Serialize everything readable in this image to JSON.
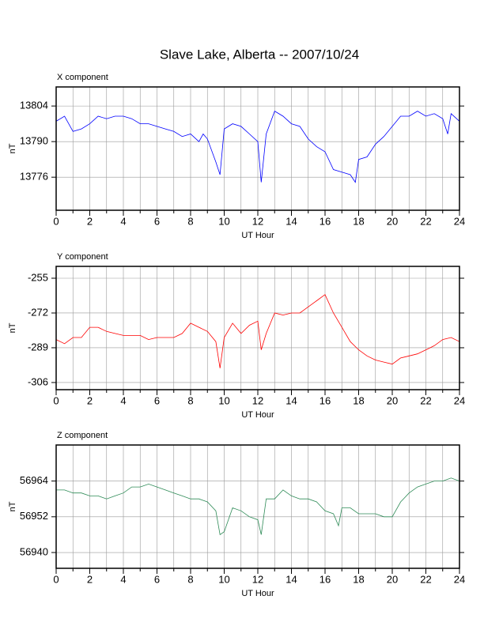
{
  "title": "Slave Lake, Alberta -- 2007/10/24",
  "chart_data": [
    {
      "type": "line",
      "title": "X component",
      "xlabel": "UT Hour",
      "ylabel": "nT",
      "color": "#0000ff",
      "grid": true,
      "xlim": [
        0,
        24
      ],
      "xticks": [
        0,
        2,
        4,
        6,
        8,
        10,
        12,
        14,
        16,
        18,
        20,
        22,
        24
      ],
      "xminorticks": [
        1,
        3,
        5,
        7,
        9,
        11,
        13,
        15,
        17,
        19,
        21,
        23
      ],
      "ylim": [
        13763,
        13811.5
      ],
      "yticks": [
        13776,
        13790,
        13804
      ],
      "x": [
        0,
        0.5,
        1,
        1.5,
        2,
        2.5,
        3,
        3.5,
        4,
        4.5,
        5,
        5.5,
        6,
        6.5,
        7,
        7.5,
        8,
        8.5,
        8.75,
        9,
        9.5,
        9.75,
        10,
        10.5,
        11,
        11.5,
        12,
        12.2,
        12.5,
        13,
        13.5,
        14,
        14.5,
        15,
        15.5,
        16,
        16.5,
        17,
        17.5,
        17.8,
        18,
        18.5,
        19,
        19.5,
        20,
        20.5,
        21,
        21.5,
        22,
        22.5,
        23,
        23.3,
        23.5,
        24
      ],
      "values": [
        13798,
        13800,
        13794,
        13795,
        13797,
        13800,
        13799,
        13800,
        13800,
        13799,
        13797,
        13797,
        13796,
        13795,
        13794,
        13792,
        13793,
        13790,
        13793,
        13791,
        13782,
        13777,
        13795,
        13797,
        13796,
        13793,
        13790,
        13774,
        13793,
        13802,
        13800,
        13797,
        13796,
        13791,
        13788,
        13786,
        13779,
        13778,
        13777,
        13774,
        13783,
        13784,
        13789,
        13792,
        13796,
        13800,
        13800,
        13802,
        13800,
        13801,
        13799,
        13793,
        13801,
        13798
      ]
    },
    {
      "type": "line",
      "title": "Y component",
      "xlabel": "UT Hour",
      "ylabel": "nT",
      "color": "#ff0000",
      "grid": true,
      "xlim": [
        0,
        24
      ],
      "xticks": [
        0,
        2,
        4,
        6,
        8,
        10,
        12,
        14,
        16,
        18,
        20,
        22,
        24
      ],
      "xminorticks": [
        1,
        3,
        5,
        7,
        9,
        11,
        13,
        15,
        17,
        19,
        21,
        23
      ],
      "ylim": [
        -309.5,
        -249.2
      ],
      "yticks": [
        -306,
        -289,
        -272,
        -255
      ],
      "x": [
        0,
        0.5,
        1,
        1.5,
        2,
        2.5,
        3,
        3.5,
        4,
        4.5,
        5,
        5.5,
        6,
        6.5,
        7,
        7.5,
        8,
        8.5,
        9,
        9.5,
        9.75,
        10,
        10.5,
        11,
        11.5,
        12,
        12.2,
        12.5,
        13,
        13.5,
        14,
        14.5,
        15,
        15.5,
        16,
        16.5,
        17,
        17.5,
        18,
        18.5,
        19,
        19.5,
        20,
        20.5,
        21,
        21.5,
        22,
        22.5,
        23,
        23.5,
        24
      ],
      "values": [
        -285,
        -287,
        -284,
        -284,
        -279,
        -279,
        -281,
        -282,
        -283,
        -283,
        -283,
        -285,
        -284,
        -284,
        -284,
        -282,
        -277,
        -279,
        -281,
        -286,
        -299,
        -284,
        -277,
        -282,
        -278,
        -276,
        -290,
        -282,
        -272,
        -273,
        -272,
        -272,
        -269,
        -266,
        -263,
        -272,
        -279,
        -286,
        -290,
        -293,
        -295,
        -296,
        -297,
        -294,
        -293,
        -292,
        -290,
        -288,
        -285,
        -284,
        -286
      ]
    },
    {
      "type": "line",
      "title": "Z component",
      "xlabel": "UT Hour",
      "ylabel": "nT",
      "color": "#2e8b57",
      "grid": true,
      "xlim": [
        0,
        24
      ],
      "xticks": [
        0,
        2,
        4,
        6,
        8,
        10,
        12,
        14,
        16,
        18,
        20,
        22,
        24
      ],
      "xminorticks": [
        1,
        3,
        5,
        7,
        9,
        11,
        13,
        15,
        17,
        19,
        21,
        23
      ],
      "ylim": [
        56934.7,
        56976.1
      ],
      "yticks": [
        56940,
        56952,
        56964
      ],
      "x": [
        0,
        0.5,
        1,
        1.5,
        2,
        2.5,
        3,
        3.5,
        4,
        4.5,
        5,
        5.5,
        6,
        6.5,
        7,
        7.5,
        8,
        8.5,
        9,
        9.5,
        9.75,
        10,
        10.5,
        11,
        11.5,
        12,
        12.2,
        12.5,
        13,
        13.5,
        14,
        14.5,
        15,
        15.5,
        16,
        16.5,
        16.8,
        17,
        17.5,
        18,
        18.5,
        19,
        19.5,
        20,
        20.5,
        21,
        21.5,
        22,
        22.5,
        23,
        23.5,
        24
      ],
      "values": [
        56961,
        56961,
        56960,
        56960,
        56959,
        56959,
        56958,
        56959,
        56960,
        56962,
        56962,
        56963,
        56962,
        56961,
        56960,
        56959,
        56958,
        56958,
        56957,
        56954,
        56946,
        56947,
        56955,
        56954,
        56952,
        56951,
        56946,
        56958,
        56958,
        56961,
        56959,
        56958,
        56958,
        56957,
        56954,
        56953,
        56949,
        56955,
        56955,
        56953,
        56953,
        56953,
        56952,
        56952,
        56957,
        56960,
        56962,
        56963,
        56964,
        56964,
        56965,
        56964
      ]
    }
  ]
}
